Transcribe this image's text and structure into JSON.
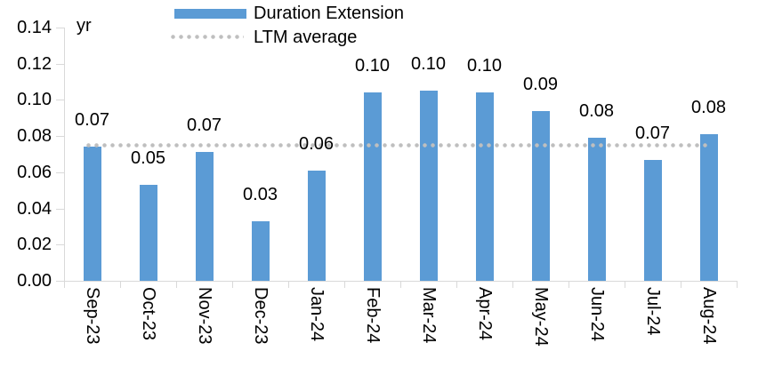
{
  "chart_data": {
    "type": "bar",
    "title": "",
    "unit_label": "yr",
    "categories": [
      "Sep-23",
      "Oct-23",
      "Nov-23",
      "Dec-23",
      "Jan-24",
      "Feb-24",
      "Mar-24",
      "Apr-24",
      "May-24",
      "Jun-24",
      "Jul-24",
      "Aug-24"
    ],
    "series": [
      {
        "name": "Duration Extension",
        "type": "bar",
        "color": "#5B9BD5",
        "values": [
          0.074,
          0.053,
          0.071,
          0.033,
          0.061,
          0.104,
          0.105,
          0.104,
          0.094,
          0.079,
          0.067,
          0.081
        ],
        "data_labels": [
          "0.07",
          "0.05",
          "0.07",
          "0.03",
          "0.06",
          "0.10",
          "0.10",
          "0.10",
          "0.09",
          "0.08",
          "0.07",
          "0.08"
        ]
      },
      {
        "name": "LTM average",
        "type": "line",
        "line_style": "dotted",
        "color": "#BFBFBF",
        "value": 0.075
      }
    ],
    "y_axis": {
      "min": 0,
      "max": 0.14,
      "tick_step": 0.02,
      "tick_labels": [
        "0.00",
        "0.02",
        "0.04",
        "0.06",
        "0.08",
        "0.10",
        "0.12",
        "0.14"
      ]
    },
    "x_axis": {
      "label_rotation_deg": 90
    },
    "grid": false,
    "legend_position": "top-center",
    "data_label_position": "outside-end"
  },
  "colors": {
    "bar": "#5B9BD5",
    "ltm_line": "#BFBFBF",
    "axis": "#D9D9D9",
    "text": "#000000",
    "background": "#FFFFFF"
  }
}
